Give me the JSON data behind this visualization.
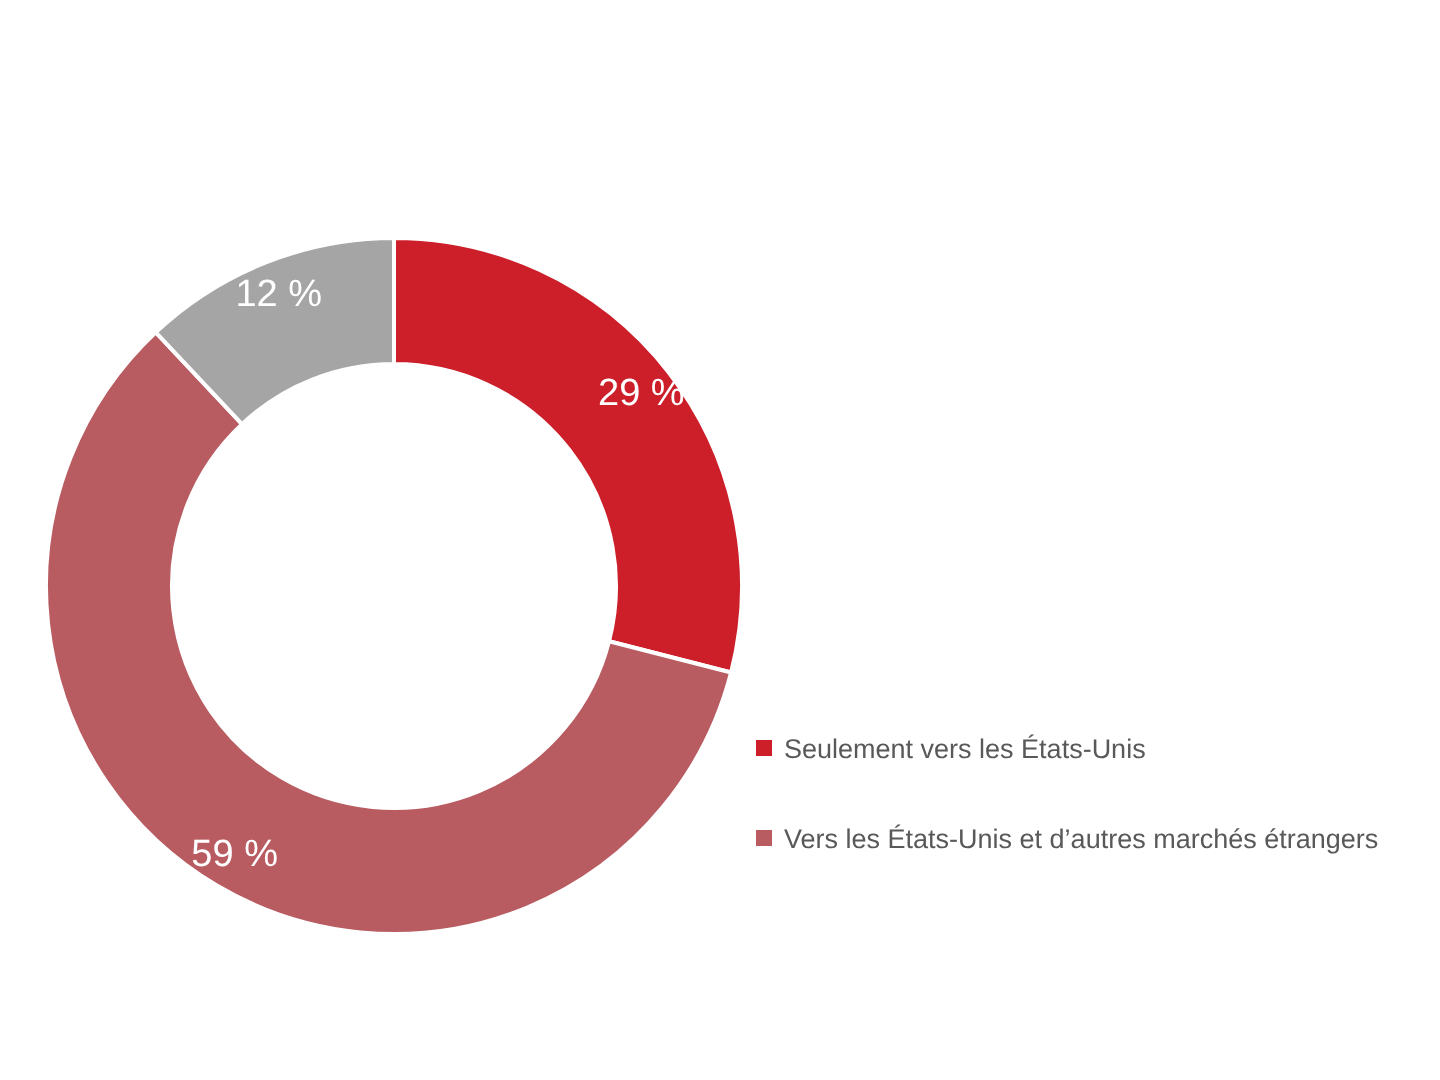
{
  "chart_data": {
    "type": "donut",
    "categories": [
      "Seulement vers les États-Unis",
      "Vers les États-Unis et d’autres marchés étrangers",
      null
    ],
    "values": [
      29,
      59,
      12
    ],
    "colors": [
      "#cc1f2a",
      "#b85c62",
      "#a5a5a5"
    ],
    "value_labels": [
      "29 %",
      "59 %",
      "12 %"
    ],
    "legend": "right"
  }
}
